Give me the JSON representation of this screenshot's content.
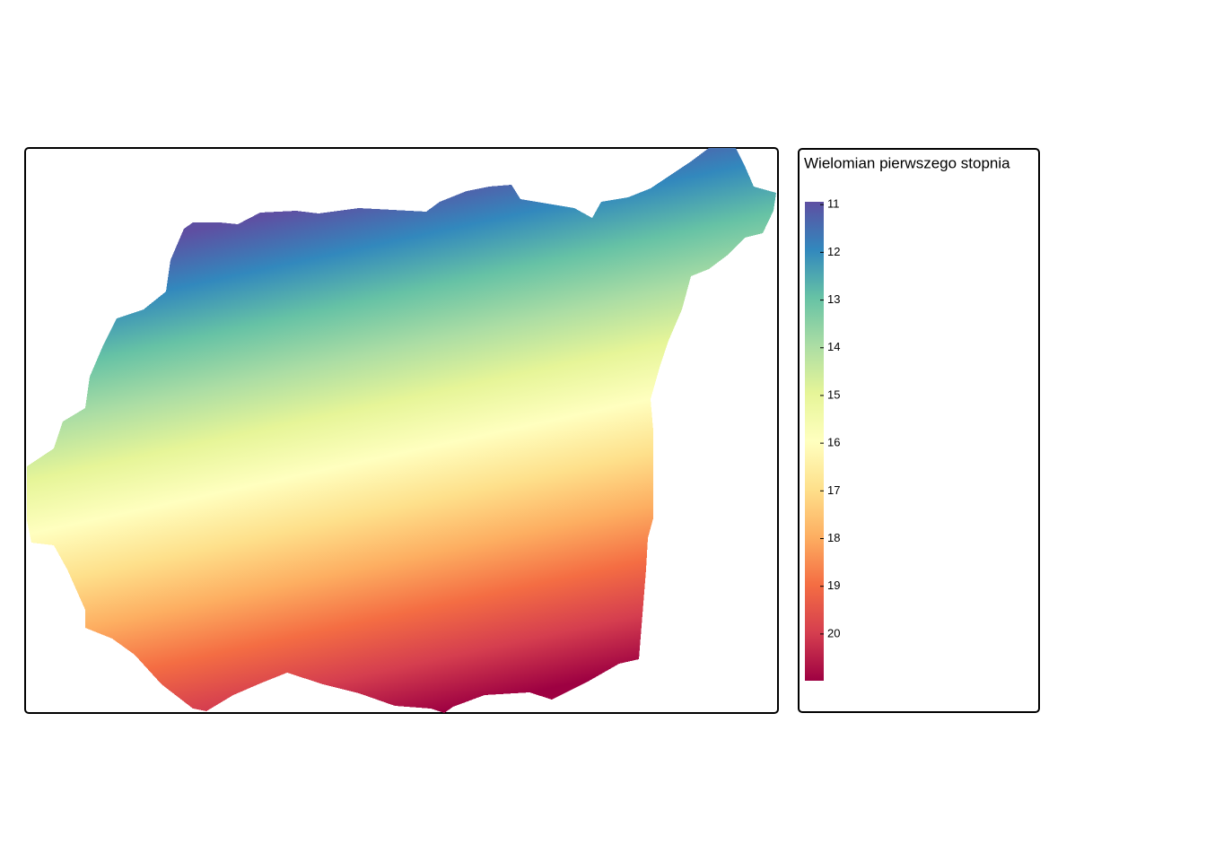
{
  "map": {
    "legend": {
      "title": "Wielomian pierwszego stopnia",
      "limits": [
        10.94,
        20.98
      ],
      "ticks": [
        11,
        12,
        13,
        14,
        15,
        16,
        17,
        18,
        19,
        20
      ],
      "colors": [
        "#5e4fa2",
        "#3288bd",
        "#66c2a5",
        "#abdda4",
        "#e6f598",
        "#ffffbf",
        "#fee08b",
        "#fdae61",
        "#f46d43",
        "#d53e4f",
        "#9e0142"
      ]
    }
  }
}
